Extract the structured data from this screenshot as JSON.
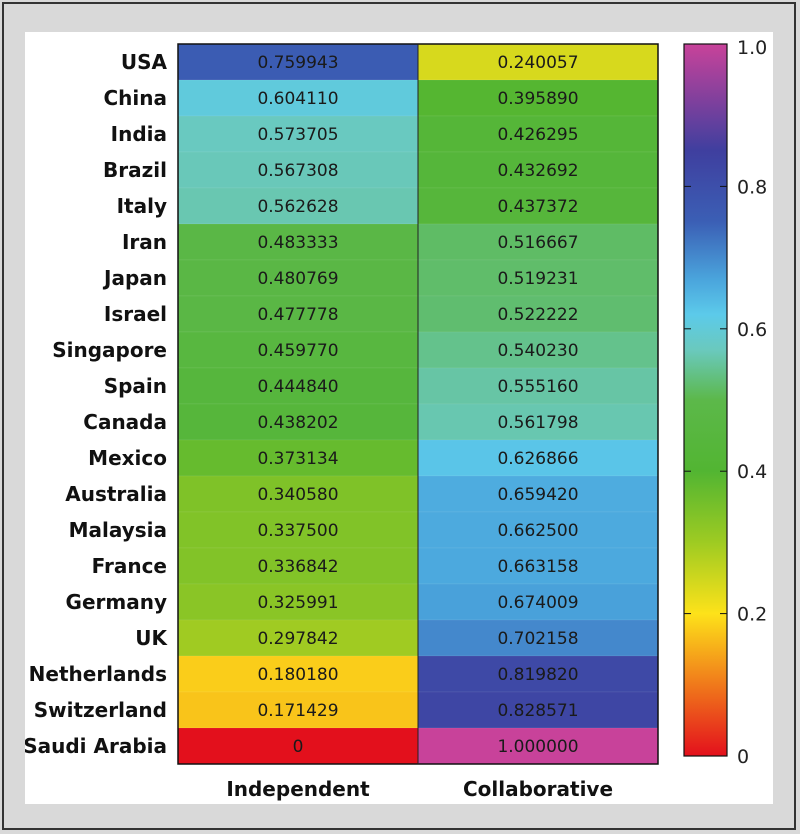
{
  "chart_data": {
    "type": "heatmap",
    "rows": [
      "USA",
      "China",
      "India",
      "Brazil",
      "Italy",
      "Iran",
      "Japan",
      "Israel",
      "Singapore",
      "Spain",
      "Canada",
      "Mexico",
      "Australia",
      "Malaysia",
      "France",
      "Germany",
      "UK",
      "Netherlands",
      "Switzerland",
      "Saudi Arabia"
    ],
    "columns": [
      "Independent",
      "Collaborative"
    ],
    "values": [
      [
        0.759943,
        0.240057
      ],
      [
        0.60411,
        0.39589
      ],
      [
        0.573705,
        0.426295
      ],
      [
        0.567308,
        0.432692
      ],
      [
        0.562628,
        0.437372
      ],
      [
        0.483333,
        0.516667
      ],
      [
        0.480769,
        0.519231
      ],
      [
        0.477778,
        0.522222
      ],
      [
        0.45977,
        0.54023
      ],
      [
        0.44484,
        0.55516
      ],
      [
        0.438202,
        0.561798
      ],
      [
        0.373134,
        0.626866
      ],
      [
        0.34058,
        0.65942
      ],
      [
        0.3375,
        0.6625
      ],
      [
        0.336842,
        0.663158
      ],
      [
        0.325991,
        0.674009
      ],
      [
        0.297842,
        0.702158
      ],
      [
        0.18018,
        0.81982
      ],
      [
        0.171429,
        0.828571
      ],
      [
        0,
        1.0
      ]
    ],
    "value_labels": [
      [
        "0.759943",
        "0.240057"
      ],
      [
        "0.604110",
        "0.395890"
      ],
      [
        "0.573705",
        "0.426295"
      ],
      [
        "0.567308",
        "0.432692"
      ],
      [
        "0.562628",
        "0.437372"
      ],
      [
        "0.483333",
        "0.516667"
      ],
      [
        "0.480769",
        "0.519231"
      ],
      [
        "0.477778",
        "0.522222"
      ],
      [
        "0.459770",
        "0.540230"
      ],
      [
        "0.444840",
        "0.555160"
      ],
      [
        "0.438202",
        "0.561798"
      ],
      [
        "0.373134",
        "0.626866"
      ],
      [
        "0.340580",
        "0.659420"
      ],
      [
        "0.337500",
        "0.662500"
      ],
      [
        "0.336842",
        "0.663158"
      ],
      [
        "0.325991",
        "0.674009"
      ],
      [
        "0.297842",
        "0.702158"
      ],
      [
        "0.180180",
        "0.819820"
      ],
      [
        "0.171429",
        "0.828571"
      ],
      [
        "0",
        "1.000000"
      ]
    ],
    "colorbar": {
      "range": [
        0,
        1
      ],
      "ticks": [
        0,
        0.2,
        0.4,
        0.6,
        0.8,
        1.0
      ],
      "tick_labels": [
        "0",
        "0.2",
        "0.4",
        "0.6",
        "0.8",
        "1.0"
      ],
      "stops": [
        {
          "v": 0.0,
          "color": "#e3101c"
        },
        {
          "v": 0.2,
          "color": "#fde21a"
        },
        {
          "v": 0.3,
          "color": "#9ecb22"
        },
        {
          "v": 0.4,
          "color": "#52b532"
        },
        {
          "v": 0.5,
          "color": "#5cb84a"
        },
        {
          "v": 0.57,
          "color": "#6ac9bd"
        },
        {
          "v": 0.62,
          "color": "#5ccaea"
        },
        {
          "v": 0.67,
          "color": "#4aa4dc"
        },
        {
          "v": 0.75,
          "color": "#3b5fb5"
        },
        {
          "v": 0.85,
          "color": "#3f3f9f"
        },
        {
          "v": 1.0,
          "color": "#c8429a"
        }
      ]
    },
    "title": "",
    "xlabel": "",
    "ylabel": ""
  }
}
